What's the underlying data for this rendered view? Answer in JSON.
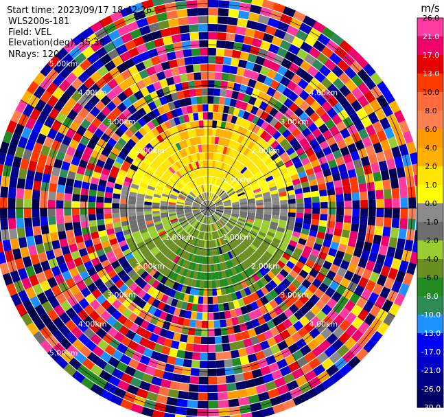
{
  "info": {
    "start_time": "Start time: 2023/09/17 18:42:26",
    "instrument": "WLS200s-181",
    "field": "Field: VEL",
    "elevation": "Elevation(deg): 35.30",
    "nrays": "NRays: 120"
  },
  "colorbar": {
    "unit": "m/s",
    "ticks": [
      {
        "label": "26.0",
        "value": 26,
        "color": "#ff3aa0"
      },
      {
        "label": "21.0",
        "value": 21,
        "color": "#f0006a"
      },
      {
        "label": "17.0",
        "value": 17,
        "color": "#e60000"
      },
      {
        "label": "13.0",
        "value": 13,
        "color": "#ff3a00"
      },
      {
        "label": "10.0",
        "value": 10,
        "color": "#ff6b3a"
      },
      {
        "label": "8.0",
        "value": 8,
        "color": "#ff7f50"
      },
      {
        "label": "6.0",
        "value": 6,
        "color": "#ff9a00"
      },
      {
        "label": "4.0",
        "value": 4,
        "color": "#ffb000"
      },
      {
        "label": "2.0",
        "value": 2,
        "color": "#ffe600"
      },
      {
        "label": "1.0",
        "value": 1,
        "color": "#ffff00"
      },
      {
        "label": "0.0",
        "value": 0,
        "color": "#8a8a8a"
      },
      {
        "label": "-1.0",
        "value": -1,
        "color": "#6e6e6e"
      },
      {
        "label": "-2.0",
        "value": -2,
        "color": "#9acd32"
      },
      {
        "label": "-4.0",
        "value": -4,
        "color": "#6b8e23"
      },
      {
        "label": "-6.0",
        "value": -6,
        "color": "#228b22"
      },
      {
        "label": "-8.0",
        "value": -8,
        "color": "#2e8b57"
      },
      {
        "label": "-10.0",
        "value": -10,
        "color": "#1e90ff"
      },
      {
        "label": "-13.0",
        "value": -13,
        "color": "#0000ff"
      },
      {
        "label": "-17.0",
        "value": -17,
        "color": "#0000cd"
      },
      {
        "label": "-21.0",
        "value": -21,
        "color": "#00008b"
      },
      {
        "label": "-26.0",
        "value": -26,
        "color": "#000066"
      },
      {
        "label": "-30.0",
        "value": -30,
        "color": "#00004d"
      }
    ]
  },
  "chart_data": {
    "type": "heatmap",
    "subtype": "polar-ppi",
    "field": "VEL",
    "unit": "m/s",
    "nrays": 120,
    "value_range": [
      -30,
      30
    ],
    "range_rings": [
      {
        "label": "1.00km",
        "km": 1
      },
      {
        "label": "2.00km",
        "km": 2
      },
      {
        "label": "3.00km",
        "km": 3
      },
      {
        "label": "4.00km",
        "km": 4
      },
      {
        "label": "5.00km",
        "km": 5
      }
    ],
    "max_range_km": 5.3,
    "spokes_deg": [
      0,
      30,
      60,
      90,
      120,
      150,
      180,
      210,
      240,
      270,
      300,
      330
    ],
    "radial_gates": 27,
    "ring_label_offsets_km": {
      "north_east": [
        1.0,
        2.0,
        3.0,
        4.0
      ],
      "north_west": [
        2.0,
        3.0,
        4.0,
        5.0
      ],
      "south_east": [
        1.0,
        2.0,
        3.0,
        4.0
      ],
      "south_west": [
        1.0,
        2.0,
        3.0,
        4.0,
        5.0
      ]
    },
    "velocity_pattern": {
      "near_field": "positive (yellow/orange) to the north, negative (green/gray) to the south",
      "far_field": "noisy random velocities (all colors)"
    }
  }
}
